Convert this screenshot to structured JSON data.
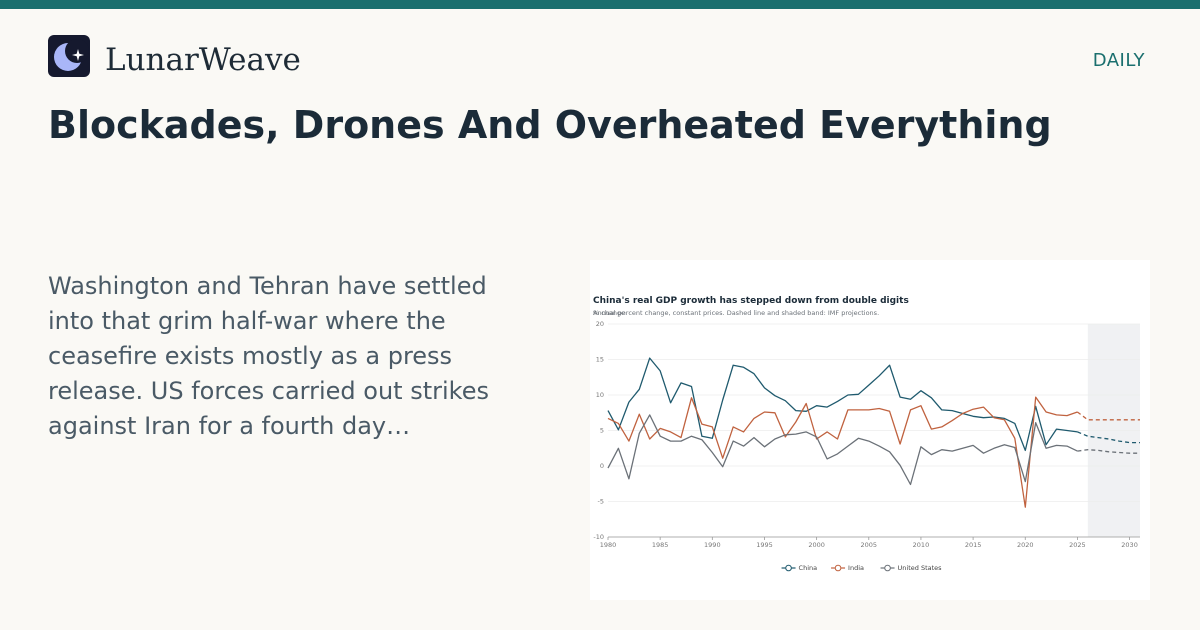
{
  "header": {
    "brand_name": "LunarWeave",
    "logo_icon": "moon-star-icon",
    "section_label": "DAILY",
    "accent_color": "#1a6f6e"
  },
  "article": {
    "headline": "Blockades, Drones And Overheated Everything",
    "summary": "Washington and Tehran have settled into that grim half-war where the ceasefire exists mostly as a press release. US forces carried out strikes against Iran for a fourth day…"
  },
  "chart_data": {
    "type": "line",
    "title": "China's real GDP growth has stepped down from double digits",
    "subtitle": "Annual percent change, constant prices. Dashed line and shaded band: IMF projections.",
    "ylabel": "% change",
    "xlim": [
      1980,
      2031
    ],
    "ylim": [
      -10,
      20
    ],
    "x_ticks": [
      "1980",
      "1985",
      "1990",
      "1995",
      "2000",
      "2005",
      "2010",
      "2015",
      "2020",
      "2025",
      "2030"
    ],
    "y_ticks": [
      "-10",
      "-5",
      "0",
      "5",
      "10",
      "15",
      "20"
    ],
    "projection_start": 2026,
    "grid": true,
    "legend_position": "bottom-center",
    "series": [
      {
        "name": "China",
        "color": "#1f5a6e",
        "values": [
          [
            1980,
            7.8
          ],
          [
            1981,
            5.1
          ],
          [
            1982,
            9.0
          ],
          [
            1983,
            10.8
          ],
          [
            1984,
            15.2
          ],
          [
            1985,
            13.4
          ],
          [
            1986,
            8.9
          ],
          [
            1987,
            11.7
          ],
          [
            1988,
            11.2
          ],
          [
            1989,
            4.2
          ],
          [
            1990,
            3.9
          ],
          [
            1991,
            9.3
          ],
          [
            1992,
            14.2
          ],
          [
            1993,
            13.9
          ],
          [
            1994,
            13.0
          ],
          [
            1995,
            11.0
          ],
          [
            1996,
            9.9
          ],
          [
            1997,
            9.2
          ],
          [
            1998,
            7.8
          ],
          [
            1999,
            7.7
          ],
          [
            2000,
            8.5
          ],
          [
            2001,
            8.3
          ],
          [
            2002,
            9.1
          ],
          [
            2003,
            10.0
          ],
          [
            2004,
            10.1
          ],
          [
            2005,
            11.4
          ],
          [
            2006,
            12.7
          ],
          [
            2007,
            14.2
          ],
          [
            2008,
            9.7
          ],
          [
            2009,
            9.4
          ],
          [
            2010,
            10.6
          ],
          [
            2011,
            9.6
          ],
          [
            2012,
            7.9
          ],
          [
            2013,
            7.8
          ],
          [
            2014,
            7.4
          ],
          [
            2015,
            7.0
          ],
          [
            2016,
            6.8
          ],
          [
            2017,
            6.9
          ],
          [
            2018,
            6.7
          ],
          [
            2019,
            6.0
          ],
          [
            2020,
            2.2
          ],
          [
            2021,
            8.4
          ],
          [
            2022,
            3.0
          ],
          [
            2023,
            5.2
          ],
          [
            2024,
            5.0
          ],
          [
            2025,
            4.8
          ]
        ],
        "projection": [
          [
            2025,
            4.8
          ],
          [
            2026,
            4.2
          ],
          [
            2027,
            4.0
          ],
          [
            2028,
            3.8
          ],
          [
            2029,
            3.5
          ],
          [
            2030,
            3.3
          ],
          [
            2031,
            3.3
          ]
        ]
      },
      {
        "name": "India",
        "color": "#c0623f",
        "values": [
          [
            1980,
            6.7
          ],
          [
            1981,
            6.0
          ],
          [
            1982,
            3.5
          ],
          [
            1983,
            7.3
          ],
          [
            1984,
            3.8
          ],
          [
            1985,
            5.3
          ],
          [
            1986,
            4.8
          ],
          [
            1987,
            4.0
          ],
          [
            1988,
            9.6
          ],
          [
            1989,
            5.9
          ],
          [
            1990,
            5.5
          ],
          [
            1991,
            1.1
          ],
          [
            1992,
            5.5
          ],
          [
            1993,
            4.8
          ],
          [
            1994,
            6.7
          ],
          [
            1995,
            7.6
          ],
          [
            1996,
            7.5
          ],
          [
            1997,
            4.1
          ],
          [
            1998,
            6.2
          ],
          [
            1999,
            8.8
          ],
          [
            2000,
            3.8
          ],
          [
            2001,
            4.8
          ],
          [
            2002,
            3.8
          ],
          [
            2003,
            7.9
          ],
          [
            2004,
            7.9
          ],
          [
            2005,
            7.9
          ],
          [
            2006,
            8.1
          ],
          [
            2007,
            7.7
          ],
          [
            2008,
            3.1
          ],
          [
            2009,
            7.9
          ],
          [
            2010,
            8.5
          ],
          [
            2011,
            5.2
          ],
          [
            2012,
            5.5
          ],
          [
            2013,
            6.4
          ],
          [
            2014,
            7.4
          ],
          [
            2015,
            8.0
          ],
          [
            2016,
            8.3
          ],
          [
            2017,
            6.8
          ],
          [
            2018,
            6.5
          ],
          [
            2019,
            3.9
          ],
          [
            2020,
            -5.8
          ],
          [
            2021,
            9.7
          ],
          [
            2022,
            7.6
          ],
          [
            2023,
            7.2
          ],
          [
            2024,
            7.1
          ],
          [
            2025,
            7.6
          ]
        ],
        "projection": [
          [
            2025,
            7.6
          ],
          [
            2026,
            6.5
          ],
          [
            2027,
            6.5
          ],
          [
            2028,
            6.5
          ],
          [
            2029,
            6.5
          ],
          [
            2030,
            6.5
          ],
          [
            2031,
            6.5
          ]
        ]
      },
      {
        "name": "United States",
        "color": "#6b7178",
        "values": [
          [
            1980,
            -0.3
          ],
          [
            1981,
            2.5
          ],
          [
            1982,
            -1.8
          ],
          [
            1983,
            4.6
          ],
          [
            1984,
            7.2
          ],
          [
            1985,
            4.2
          ],
          [
            1986,
            3.5
          ],
          [
            1987,
            3.5
          ],
          [
            1988,
            4.2
          ],
          [
            1989,
            3.7
          ],
          [
            1990,
            1.9
          ],
          [
            1991,
            -0.1
          ],
          [
            1992,
            3.5
          ],
          [
            1993,
            2.8
          ],
          [
            1994,
            4.0
          ],
          [
            1995,
            2.7
          ],
          [
            1996,
            3.8
          ],
          [
            1997,
            4.4
          ],
          [
            1998,
            4.5
          ],
          [
            1999,
            4.8
          ],
          [
            2000,
            4.1
          ],
          [
            2001,
            1.0
          ],
          [
            2002,
            1.7
          ],
          [
            2003,
            2.8
          ],
          [
            2004,
            3.9
          ],
          [
            2005,
            3.5
          ],
          [
            2006,
            2.8
          ],
          [
            2007,
            2.0
          ],
          [
            2008,
            0.1
          ],
          [
            2009,
            -2.6
          ],
          [
            2010,
            2.7
          ],
          [
            2011,
            1.6
          ],
          [
            2012,
            2.3
          ],
          [
            2013,
            2.1
          ],
          [
            2014,
            2.5
          ],
          [
            2015,
            2.9
          ],
          [
            2016,
            1.8
          ],
          [
            2017,
            2.5
          ],
          [
            2018,
            3.0
          ],
          [
            2019,
            2.6
          ],
          [
            2020,
            -2.2
          ],
          [
            2021,
            6.1
          ],
          [
            2022,
            2.5
          ],
          [
            2023,
            2.9
          ],
          [
            2024,
            2.8
          ],
          [
            2025,
            2.1
          ]
        ],
        "projection": [
          [
            2025,
            2.1
          ],
          [
            2026,
            2.3
          ],
          [
            2027,
            2.2
          ],
          [
            2028,
            2.0
          ],
          [
            2029,
            1.9
          ],
          [
            2030,
            1.8
          ],
          [
            2031,
            1.8
          ]
        ]
      }
    ]
  }
}
